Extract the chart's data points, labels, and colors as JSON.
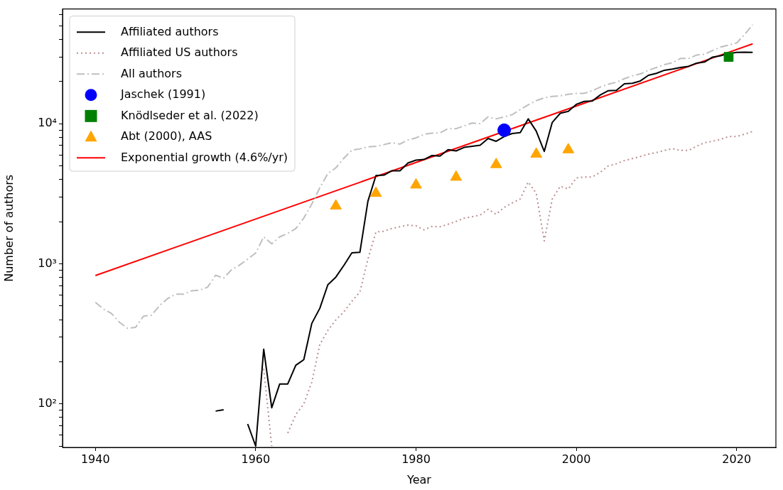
{
  "chart_data": {
    "type": "line",
    "xlabel": "Year",
    "ylabel": "Number of authors",
    "log": "y",
    "legend": "top left",
    "grid": false,
    "xlim": [
      1935.9,
      2024.9
    ],
    "xticks": [
      1940,
      1960,
      1980,
      2000,
      2020
    ],
    "ylim": [
      49,
      66000
    ],
    "yticks": [
      {
        "value": 50,
        "label": null
      },
      {
        "value": 60,
        "label": null
      },
      {
        "value": 70,
        "label": null
      },
      {
        "value": 80,
        "label": null
      },
      {
        "value": 90,
        "label": null
      },
      {
        "value": 100,
        "label": "10²"
      },
      {
        "value": 200,
        "label": null
      },
      {
        "value": 300,
        "label": null
      },
      {
        "value": 400,
        "label": null
      },
      {
        "value": 500,
        "label": null
      },
      {
        "value": 600,
        "label": null
      },
      {
        "value": 700,
        "label": null
      },
      {
        "value": 800,
        "label": null
      },
      {
        "value": 900,
        "label": null
      },
      {
        "value": 1000,
        "label": "10³"
      },
      {
        "value": 2000,
        "label": null
      },
      {
        "value": 3000,
        "label": null
      },
      {
        "value": 4000,
        "label": null
      },
      {
        "value": 5000,
        "label": null
      },
      {
        "value": 6000,
        "label": null
      },
      {
        "value": 7000,
        "label": null
      },
      {
        "value": 8000,
        "label": null
      },
      {
        "value": 9000,
        "label": null
      },
      {
        "value": 10000,
        "label": "10⁴"
      },
      {
        "value": 20000,
        "label": null
      },
      {
        "value": 30000,
        "label": null
      },
      {
        "value": 40000,
        "label": null
      },
      {
        "value": 50000,
        "label": null
      },
      {
        "value": 60000,
        "label": null
      }
    ],
    "series": [
      {
        "name": "Affiliated authors",
        "color": "#000000",
        "line_style": "solid",
        "marker": "none",
        "x": [
          1955,
          1956,
          1957,
          1958,
          1959,
          1960,
          1961,
          1962,
          1963,
          1964,
          1965,
          1966,
          1967,
          1968,
          1969,
          1970,
          1971,
          1972,
          1973,
          1974,
          1975,
          1976,
          1977,
          1978,
          1979,
          1980,
          1981,
          1982,
          1983,
          1984,
          1985,
          1986,
          1987,
          1988,
          1989,
          1990,
          1991,
          1992,
          1993,
          1994,
          1995,
          1996,
          1997,
          1998,
          1999,
          2000,
          2001,
          2002,
          2003,
          2004,
          2005,
          2006,
          2007,
          2008,
          2009,
          2010,
          2011,
          2012,
          2013,
          2014,
          2015,
          2016,
          2017,
          2018,
          2019,
          2020,
          2021,
          2022
        ],
        "values": [
          89,
          91,
          null,
          null,
          72,
          50,
          246,
          94,
          139,
          139,
          189,
          207,
          376,
          482,
          709,
          805,
          975,
          1200,
          1210,
          2800,
          4270,
          4300,
          4620,
          4620,
          5250,
          5500,
          5560,
          5940,
          5880,
          6530,
          6400,
          6780,
          6900,
          7030,
          7850,
          7500,
          8100,
          8520,
          8640,
          10840,
          8860,
          6350,
          10230,
          11880,
          12270,
          13770,
          14450,
          14550,
          16070,
          17230,
          17300,
          19300,
          19450,
          20230,
          22180,
          22900,
          24100,
          24600,
          25200,
          25700,
          27080,
          27600,
          29900,
          30600,
          31700,
          32300,
          32400,
          32300
        ]
      },
      {
        "name": "Affiliated US authors",
        "color": "#bc8f8f",
        "line_style": "dotted",
        "marker": "none",
        "x": [
          1961,
          1962,
          1963,
          1964,
          1965,
          1966,
          1967,
          1968,
          1969,
          1970,
          1971,
          1972,
          1973,
          1974,
          1975,
          1976,
          1977,
          1978,
          1979,
          1980,
          1981,
          1982,
          1983,
          1984,
          1985,
          1986,
          1987,
          1988,
          1989,
          1990,
          1991,
          1992,
          1993,
          1994,
          1995,
          1996,
          1997,
          1998,
          1999,
          2000,
          2001,
          2002,
          2003,
          2004,
          2005,
          2006,
          2007,
          2008,
          2009,
          2010,
          2011,
          2012,
          2013,
          2014,
          2015,
          2016,
          2017,
          2018,
          2019,
          2020,
          2021,
          2022
        ],
        "values": [
          178,
          50,
          null,
          62,
          84,
          100,
          143,
          266,
          335,
          398,
          455,
          541,
          630,
          1080,
          1690,
          1710,
          1790,
          1840,
          1890,
          1870,
          1750,
          1850,
          1840,
          1920,
          2010,
          2120,
          2170,
          2230,
          2450,
          2260,
          2530,
          2720,
          2910,
          3840,
          3190,
          1460,
          2910,
          3580,
          3420,
          4110,
          4170,
          4170,
          4510,
          5010,
          5180,
          5460,
          5650,
          5850,
          6070,
          6240,
          6450,
          6640,
          6450,
          6450,
          6910,
          7330,
          7500,
          7740,
          8110,
          8110,
          8430,
          8810
        ]
      },
      {
        "name": "All authors",
        "color": "#bfbfbf",
        "line_style": "dashed",
        "marker": "none",
        "x": [
          1940,
          1941,
          1942,
          1943,
          1944,
          1945,
          1946,
          1947,
          1948,
          1949,
          1950,
          1951,
          1952,
          1953,
          1954,
          1955,
          1956,
          1957,
          1958,
          1959,
          1960,
          1961,
          1962,
          1963,
          1964,
          1965,
          1966,
          1967,
          1968,
          1969,
          1970,
          1971,
          1972,
          1973,
          1974,
          1975,
          1976,
          1977,
          1978,
          1979,
          1980,
          1981,
          1982,
          1983,
          1984,
          1985,
          1986,
          1987,
          1988,
          1989,
          1990,
          1991,
          1992,
          1993,
          1994,
          1995,
          1996,
          1997,
          1998,
          1999,
          2000,
          2001,
          2002,
          2003,
          2004,
          2005,
          2006,
          2007,
          2008,
          2009,
          2010,
          2011,
          2012,
          2013,
          2014,
          2015,
          2016,
          2017,
          2018,
          2019,
          2020,
          2021,
          2022
        ],
        "values": [
          531,
          476,
          443,
          383,
          347,
          352,
          423,
          430,
          503,
          565,
          607,
          607,
          643,
          650,
          682,
          830,
          790,
          910,
          982,
          1081,
          1196,
          1560,
          1390,
          1560,
          1650,
          1785,
          2125,
          2675,
          3500,
          4410,
          4850,
          5680,
          6470,
          6620,
          6840,
          6900,
          7100,
          7330,
          7160,
          7670,
          7930,
          8410,
          8570,
          8610,
          9230,
          9230,
          9660,
          10120,
          10030,
          11200,
          10840,
          11200,
          11610,
          12620,
          13650,
          14630,
          15320,
          15680,
          15830,
          16230,
          16500,
          16500,
          17230,
          18290,
          19160,
          19780,
          20990,
          21980,
          22700,
          24100,
          25240,
          26430,
          27300,
          29250,
          29250,
          30910,
          31350,
          33320,
          35250,
          36400,
          37760,
          43400,
          50900
        ]
      },
      {
        "name": "Jaschek (1991)",
        "type": "scatter",
        "color": "#0000ff",
        "marker": "circle",
        "x": [
          1991
        ],
        "values": [
          9000
        ]
      },
      {
        "name": "Knödlseder et al. (2022)",
        "type": "scatter",
        "color": "#008000",
        "marker": "square",
        "x": [
          2019
        ],
        "values": [
          30000
        ]
      },
      {
        "name": "Abt (2000), AAS",
        "type": "scatter",
        "color": "#ffa500",
        "marker": "triangle",
        "x": [
          1970,
          1975,
          1980,
          1985,
          1990,
          1995,
          1999
        ],
        "values": [
          2590,
          3190,
          3660,
          4160,
          5120,
          6080,
          6530
        ]
      },
      {
        "name": "Exponential growth (4.6%/yr)",
        "color": "#ff0000",
        "line_style": "solid",
        "marker": "none",
        "x": [
          1940,
          2022
        ],
        "values": [
          826,
          37200
        ]
      }
    ]
  }
}
